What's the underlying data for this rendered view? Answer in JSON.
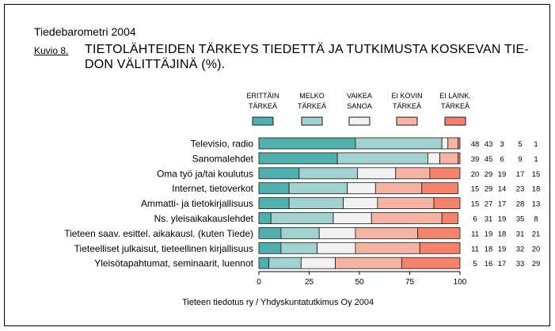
{
  "header": {
    "report_title": "Tiedebarometri 2004",
    "figure_label": "Kuvio 8.",
    "title_line1": "TIETOLÄHTEIDEN TÄRKEYS TIEDETTÄ JA TUTKIMUSTA KOSKEVAN TIE-",
    "title_line2": "DON VÄLITTÄJINÄ (%)."
  },
  "footer": {
    "credit": "Tieteen tiedotus ry / Yhdyskuntatutkimus Oy 2004"
  },
  "colors": {
    "series": [
      "#4fb0ad",
      "#a2d2cf",
      "#f2f2f2",
      "#f8b4a3",
      "#f7826c"
    ],
    "bar_stroke": "#1a1a1a",
    "text": "#000000"
  },
  "chart_data": {
    "type": "bar",
    "orientation": "horizontal",
    "stacked": true,
    "unit": "%",
    "xlim": [
      0,
      100
    ],
    "xticks": [
      0,
      25,
      50,
      75,
      100
    ],
    "grid": false,
    "legend_position": "top",
    "categories": [
      "Televisio, radio",
      "Sanomalehdet",
      "Oma työ ja/tai koulutus",
      "Internet, tietoverkot",
      "Ammatti- ja tietokirjallisuus",
      "Ns. yleisaikakauslehdet",
      "Tieteen saav. esittel. aikakausl. (kuten Tiede)",
      "Tieteelliset julkaisut, tieteellinen kirjallisuus",
      "Yleisötapahtumat, seminaarit, luennot"
    ],
    "series": [
      {
        "name": "ERITTÄIN TÄRKEÄ",
        "label_line1": "ERITTÄIN",
        "label_line2": "TÄRKEÄ",
        "values": [
          48,
          39,
          20,
          15,
          15,
          6,
          11,
          11,
          5
        ]
      },
      {
        "name": "MELKO TÄRKEÄ",
        "label_line1": "MELKO",
        "label_line2": "TÄRKEÄ",
        "values": [
          43,
          45,
          29,
          29,
          27,
          31,
          19,
          18,
          16
        ]
      },
      {
        "name": "VAIKEA SANOA",
        "label_line1": "VAIKEA",
        "label_line2": "SANOA",
        "values": [
          3,
          6,
          19,
          14,
          17,
          19,
          18,
          19,
          17
        ]
      },
      {
        "name": "EI KOVIN TÄRKEÄ",
        "label_line1": "EI KOVIN",
        "label_line2": "TÄRKEÄ",
        "values": [
          5,
          9,
          17,
          23,
          28,
          35,
          31,
          32,
          33
        ]
      },
      {
        "name": "EI LAINK. TÄRKEÄ",
        "label_line1": "EI LAINK.",
        "label_line2": "TÄRKEÄ",
        "values": [
          1,
          1,
          15,
          18,
          13,
          8,
          21,
          20,
          29
        ]
      }
    ]
  }
}
